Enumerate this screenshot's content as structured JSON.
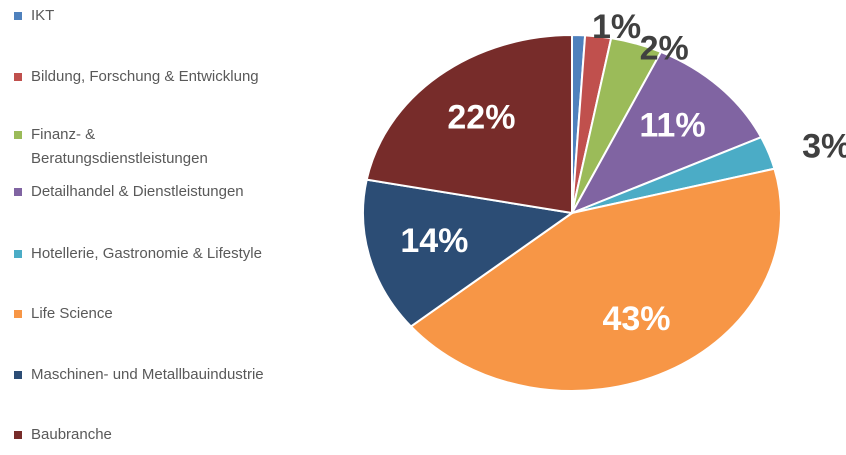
{
  "chart_data": {
    "type": "pie",
    "categories": [
      "IKT",
      "Bildung, Forschung & Entwicklung",
      "Finanz- & Beratungsdienstleistungen",
      "Detailhandel & Dienstleistungen",
      "Hotellerie, Gastronomie & Lifestyle",
      "Life Science",
      "Maschinen- und Metallbauindustrie",
      "Baubranche"
    ],
    "values": [
      1,
      2,
      4,
      11,
      3,
      43,
      14,
      22
    ],
    "value_labels": [
      "1%",
      "2%",
      null,
      "11%",
      "3%",
      "43%",
      "14%",
      "22%"
    ],
    "colors": [
      "#4f81bd",
      "#c0504d",
      "#9bbb59",
      "#8064a2",
      "#4bacc6",
      "#f79646",
      "#2c4d75",
      "#772c2a"
    ],
    "legend": "left"
  }
}
